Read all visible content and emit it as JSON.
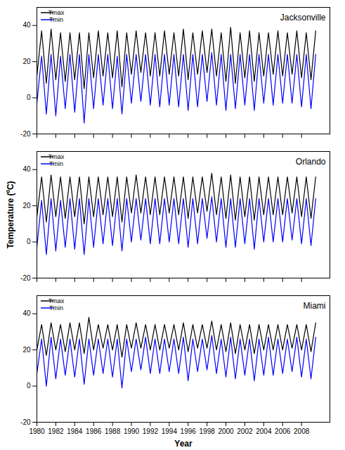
{
  "chart_data": [
    {
      "type": "line",
      "title": "Jacksonville",
      "legend": "upper left",
      "grid": false,
      "tick_labels": "y",
      "xlim": [
        1980,
        2011
      ],
      "xticks": [
        1980,
        1982,
        1984,
        1986,
        1988,
        1990,
        1992,
        1994,
        1996,
        1998,
        2000,
        2002,
        2004,
        2006,
        2008
      ],
      "ylim": [
        -20,
        50
      ],
      "yticks": [
        -20,
        0,
        20,
        40
      ],
      "x": [
        1980,
        1980.5,
        1981,
        1981.5,
        1982,
        1982.5,
        1983,
        1983.5,
        1984,
        1984.5,
        1985,
        1985.5,
        1986,
        1986.5,
        1987,
        1987.5,
        1988,
        1988.5,
        1989,
        1989.5,
        1990,
        1990.5,
        1991,
        1991.5,
        1992,
        1992.5,
        1993,
        1993.5,
        1994,
        1994.5,
        1995,
        1995.5,
        1996,
        1996.5,
        1997,
        1997.5,
        1998,
        1998.5,
        1999,
        1999.5,
        2000,
        2000.5,
        2001,
        2001.5,
        2002,
        2002.5,
        2003,
        2003.5,
        2004,
        2004.5,
        2005,
        2005.5,
        2006,
        2006.5,
        2007,
        2007.5,
        2008,
        2008.5,
        2009,
        2009.5
      ],
      "series": [
        {
          "name": "Tmax",
          "color": "#000000",
          "values": [
            12,
            37,
            8,
            38,
            10,
            36,
            9,
            36,
            10,
            36,
            5,
            36,
            11,
            37,
            12,
            36,
            11,
            37,
            6,
            36,
            13,
            37,
            14,
            36,
            12,
            36,
            12,
            37,
            13,
            36,
            12,
            38,
            10,
            36,
            13,
            37,
            14,
            38,
            12,
            36,
            9,
            39,
            8,
            36,
            11,
            37,
            9,
            36,
            12,
            36,
            13,
            37,
            12,
            36,
            13,
            37,
            11,
            36,
            10,
            37
          ]
        },
        {
          "name": "Tmin",
          "color": "#0000ff",
          "values": [
            -3,
            23,
            -9,
            24,
            -10,
            23,
            -6,
            24,
            -8,
            24,
            -14,
            24,
            -6,
            24,
            -4,
            24,
            -6,
            23,
            -9,
            24,
            -3,
            24,
            -2,
            24,
            -4,
            24,
            -5,
            24,
            -4,
            24,
            -5,
            24,
            -7,
            24,
            -5,
            24,
            -2,
            25,
            -4,
            24,
            -7,
            24,
            -6,
            24,
            -4,
            24,
            -7,
            24,
            -3,
            24,
            -4,
            24,
            -3,
            24,
            -3,
            24,
            -5,
            24,
            -6,
            24
          ]
        }
      ]
    },
    {
      "type": "line",
      "title": "Orlando",
      "legend": "upper left",
      "grid": false,
      "tick_labels": "y",
      "ylabel": "Temperature (ºC)",
      "xlim": [
        1980,
        2011
      ],
      "xticks": [
        1980,
        1982,
        1984,
        1986,
        1988,
        1990,
        1992,
        1994,
        1996,
        1998,
        2000,
        2002,
        2004,
        2006,
        2008
      ],
      "ylim": [
        -20,
        50
      ],
      "yticks": [
        -20,
        0,
        20,
        40
      ],
      "x": [
        1980,
        1980.5,
        1981,
        1981.5,
        1982,
        1982.5,
        1983,
        1983.5,
        1984,
        1984.5,
        1985,
        1985.5,
        1986,
        1986.5,
        1987,
        1987.5,
        1988,
        1988.5,
        1989,
        1989.5,
        1990,
        1990.5,
        1991,
        1991.5,
        1992,
        1992.5,
        1993,
        1993.5,
        1994,
        1994.5,
        1995,
        1995.5,
        1996,
        1996.5,
        1997,
        1997.5,
        1998,
        1998.5,
        1999,
        1999.5,
        2000,
        2000.5,
        2001,
        2001.5,
        2002,
        2002.5,
        2003,
        2003.5,
        2004,
        2004.5,
        2005,
        2005.5,
        2006,
        2006.5,
        2007,
        2007.5,
        2008,
        2008.5,
        2009,
        2009.5
      ],
      "series": [
        {
          "name": "Tmax",
          "color": "#000000",
          "values": [
            14,
            36,
            11,
            37,
            14,
            36,
            13,
            36,
            14,
            36,
            10,
            36,
            14,
            36,
            15,
            36,
            14,
            36,
            11,
            36,
            16,
            37,
            16,
            36,
            15,
            36,
            15,
            36,
            16,
            36,
            15,
            36,
            13,
            36,
            16,
            36,
            17,
            38,
            15,
            36,
            13,
            37,
            12,
            36,
            14,
            36,
            12,
            36,
            15,
            36,
            15,
            36,
            15,
            36,
            16,
            36,
            14,
            36,
            13,
            36
          ]
        },
        {
          "name": "Tmin",
          "color": "#0000ff",
          "values": [
            -3,
            23,
            -7,
            24,
            -5,
            23,
            -3,
            24,
            -4,
            24,
            -7,
            24,
            -3,
            24,
            -1,
            24,
            -2,
            24,
            -5,
            24,
            0,
            24,
            1,
            24,
            -1,
            24,
            -1,
            24,
            0,
            24,
            -1,
            24,
            -3,
            24,
            -1,
            24,
            2,
            25,
            0,
            24,
            -3,
            24,
            -3,
            24,
            -1,
            24,
            -4,
            24,
            0,
            24,
            0,
            24,
            0,
            24,
            1,
            24,
            -1,
            24,
            -2,
            24
          ]
        }
      ]
    },
    {
      "type": "line",
      "title": "Miami",
      "legend": "upper left",
      "grid": false,
      "xlabel": "Year",
      "xlim": [
        1980,
        2011
      ],
      "xticks": [
        1980,
        1982,
        1984,
        1986,
        1988,
        1990,
        1992,
        1994,
        1996,
        1998,
        2000,
        2002,
        2004,
        2006,
        2008
      ],
      "ylim": [
        -20,
        50
      ],
      "yticks": [
        -20,
        0,
        20,
        40
      ],
      "x": [
        1980,
        1980.5,
        1981,
        1981.5,
        1982,
        1982.5,
        1983,
        1983.5,
        1984,
        1984.5,
        1985,
        1985.5,
        1986,
        1986.5,
        1987,
        1987.5,
        1988,
        1988.5,
        1989,
        1989.5,
        1990,
        1990.5,
        1991,
        1991.5,
        1992,
        1992.5,
        1993,
        1993.5,
        1994,
        1994.5,
        1995,
        1995.5,
        1996,
        1996.5,
        1997,
        1997.5,
        1998,
        1998.5,
        1999,
        1999.5,
        2000,
        2000.5,
        2001,
        2001.5,
        2002,
        2002.5,
        2003,
        2003.5,
        2004,
        2004.5,
        2005,
        2005.5,
        2006,
        2006.5,
        2007,
        2007.5,
        2008,
        2008.5,
        2009,
        2009.5
      ],
      "series": [
        {
          "name": "Tmax",
          "color": "#000000",
          "values": [
            20,
            34,
            17,
            35,
            20,
            34,
            19,
            35,
            20,
            35,
            18,
            38,
            20,
            34,
            21,
            34,
            20,
            34,
            16,
            34,
            21,
            35,
            21,
            34,
            20,
            34,
            20,
            34,
            21,
            34,
            20,
            35,
            19,
            34,
            21,
            34,
            21,
            36,
            20,
            34,
            19,
            35,
            18,
            34,
            20,
            34,
            18,
            34,
            20,
            34,
            20,
            34,
            20,
            34,
            21,
            34,
            20,
            34,
            19,
            35
          ]
        },
        {
          "name": "Tmin",
          "color": "#0000ff",
          "values": [
            7,
            26,
            0,
            27,
            4,
            26,
            6,
            26,
            5,
            26,
            1,
            26,
            6,
            26,
            7,
            26,
            5,
            26,
            -1,
            26,
            8,
            26,
            9,
            27,
            7,
            26,
            7,
            26,
            8,
            26,
            7,
            27,
            3,
            26,
            8,
            26,
            9,
            28,
            7,
            26,
            5,
            27,
            4,
            26,
            6,
            26,
            3,
            26,
            6,
            27,
            6,
            26,
            7,
            26,
            8,
            27,
            5,
            26,
            4,
            27
          ]
        }
      ]
    }
  ]
}
